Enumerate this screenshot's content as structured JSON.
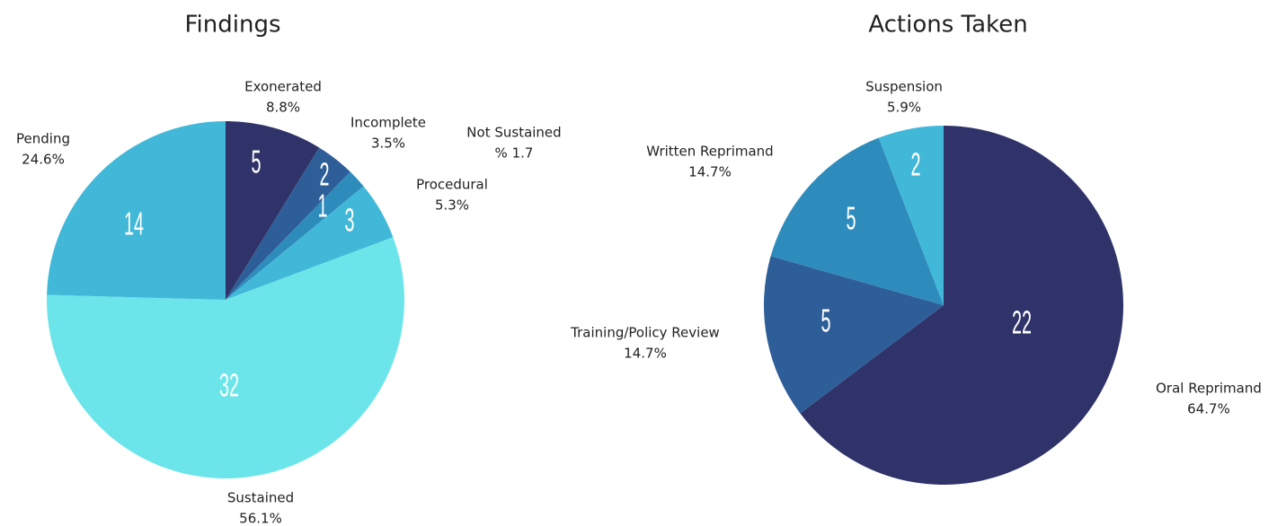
{
  "chart_data": [
    {
      "type": "pie",
      "title": "Findings",
      "categories": [
        "Exonerated",
        "Incomplete",
        "Not Sustained",
        "Procedural",
        "Sustained",
        "Pending"
      ],
      "values": [
        5,
        2,
        1,
        3,
        32,
        14
      ],
      "percent_labels": [
        "8.8%",
        "3.5%",
        "% 1.7",
        "5.3%",
        "56.1%",
        "24.6%"
      ],
      "colors": [
        "#2f3369",
        "#2e5e98",
        "#2e8cbd",
        "#41b8d8",
        "#6be5e9",
        "#41b8d8"
      ]
    },
    {
      "type": "pie",
      "title": "Actions Taken",
      "categories": [
        "Oral Reprimand",
        "Training/Policy Review",
        "Written Reprimand",
        "Suspension"
      ],
      "values": [
        22,
        5,
        5,
        2
      ],
      "percent_labels": [
        "64.7%",
        "14.7%",
        "14.7%",
        "5.9%"
      ],
      "colors": [
        "#2f3369",
        "#2e5e98",
        "#2e8cbd",
        "#41b8d8"
      ]
    }
  ]
}
